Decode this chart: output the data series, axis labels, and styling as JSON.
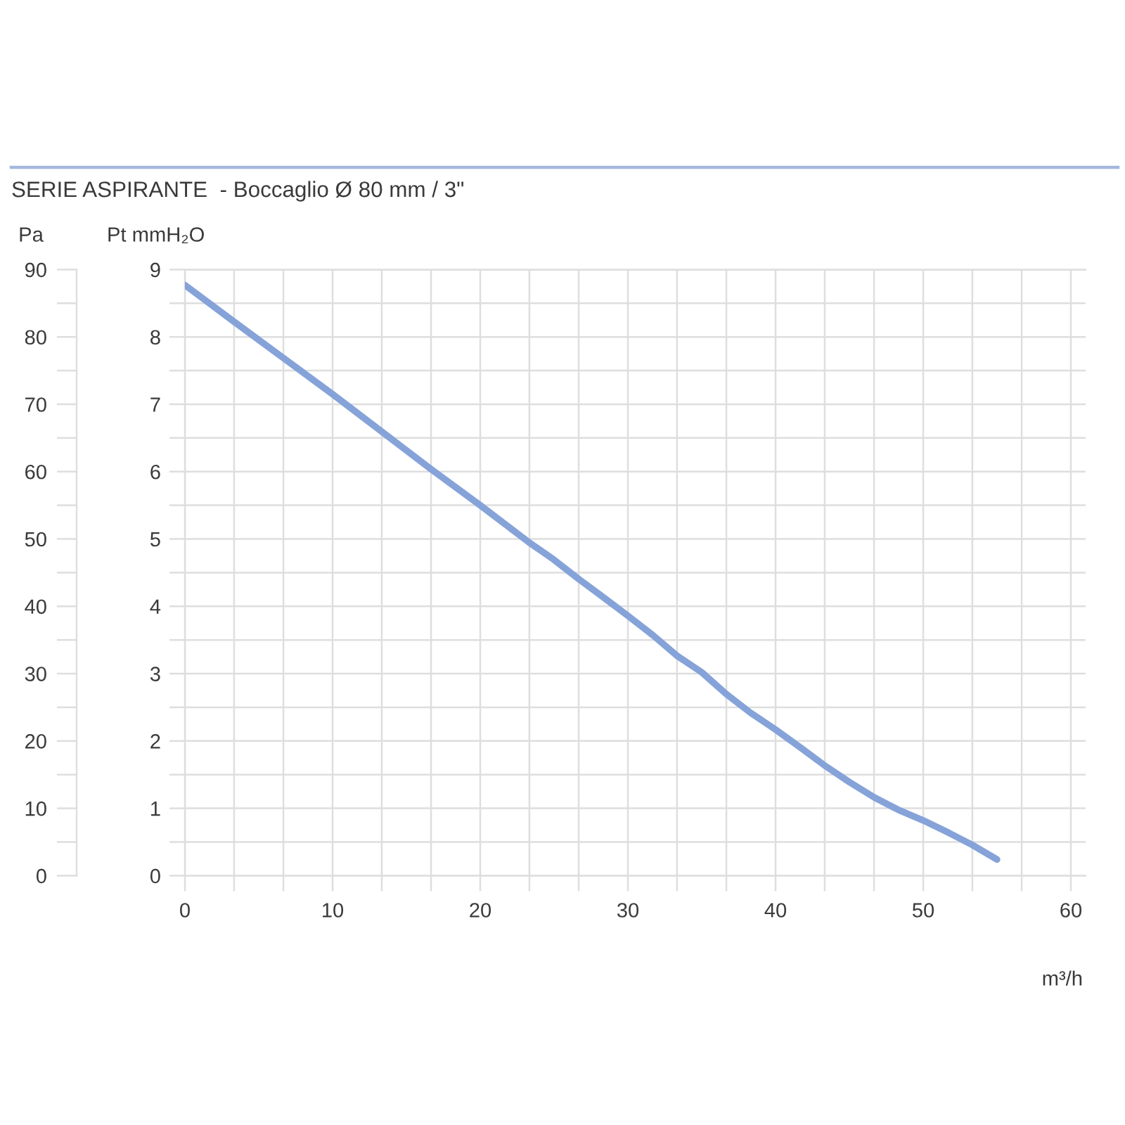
{
  "chart_data": {
    "type": "line",
    "title": "SERIE ASPIRANTE  - Boccaglio Ø 80 mm / 3\"",
    "xlabel": "m³/h",
    "ylabel": "Pt mmH₂O",
    "y2label": "Pa",
    "x": [
      0,
      3.3,
      10,
      16.7,
      20,
      23.3,
      25,
      26.7,
      28.3,
      30,
      31.7,
      33.3,
      35,
      36.7,
      38.3,
      40,
      41.7,
      43.3,
      45,
      46.7,
      48.3,
      50,
      51.7,
      53.3,
      55
    ],
    "series": [
      {
        "color": "#86a3d9",
        "values": [
          8.77,
          8.23,
          7.15,
          6.03,
          5.5,
          4.95,
          4.69,
          4.4,
          4.14,
          3.86,
          3.57,
          3.27,
          3.02,
          2.69,
          2.42,
          2.17,
          1.9,
          1.64,
          1.39,
          1.16,
          0.98,
          0.82,
          0.64,
          0.46,
          0.24
        ]
      }
    ],
    "xlim": [
      0,
      61
    ],
    "ylim": [
      0,
      9
    ],
    "y2lim": [
      0,
      90
    ],
    "xticks": [
      0,
      {
        "value": 3.33,
        "label": null
      },
      {
        "value": 6.67,
        "label": null
      },
      10,
      {
        "value": 13.33,
        "label": null
      },
      {
        "value": 16.67,
        "label": null
      },
      20,
      {
        "value": 23.33,
        "label": null
      },
      {
        "value": 26.67,
        "label": null
      },
      30,
      {
        "value": 33.33,
        "label": null
      },
      {
        "value": 36.67,
        "label": null
      },
      40,
      {
        "value": 43.33,
        "label": null
      },
      {
        "value": 46.67,
        "label": null
      },
      50,
      {
        "value": 53.33,
        "label": null
      },
      {
        "value": 56.67,
        "label": null
      },
      60
    ],
    "yticks": [
      0,
      {
        "value": 0.5,
        "label": null
      },
      1,
      {
        "value": 1.5,
        "label": null
      },
      2,
      {
        "value": 2.5,
        "label": null
      },
      3,
      {
        "value": 3.5,
        "label": null
      },
      4,
      {
        "value": 4.5,
        "label": null
      },
      5,
      {
        "value": 5.5,
        "label": null
      },
      6,
      {
        "value": 6.5,
        "label": null
      },
      7,
      {
        "value": 7.5,
        "label": null
      },
      8,
      {
        "value": 8.5,
        "label": null
      },
      9
    ],
    "y2ticks": [
      0,
      {
        "value": 5,
        "label": null
      },
      10,
      {
        "value": 15,
        "label": null
      },
      20,
      {
        "value": 25,
        "label": null
      },
      30,
      {
        "value": 35,
        "label": null
      },
      40,
      {
        "value": 45,
        "label": null
      },
      50,
      {
        "value": 55,
        "label": null
      },
      60,
      {
        "value": 65,
        "label": null
      },
      70,
      {
        "value": 75,
        "label": null
      },
      80,
      {
        "value": 85,
        "label": null
      },
      90
    ],
    "grid": true
  }
}
